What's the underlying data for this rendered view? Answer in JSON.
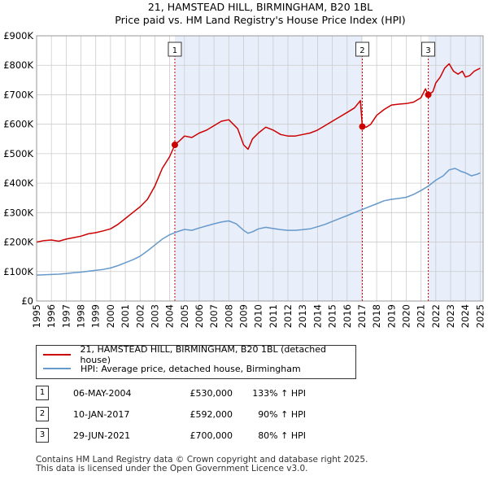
{
  "title": "21, HAMSTEAD HILL, BIRMINGHAM, B20 1BL",
  "subtitle": "Price paid vs. HM Land Registry's House Price Index (HPI)",
  "colors": {
    "property": "#cc0000",
    "hpi": "#6699cc",
    "band": "#e8eefa",
    "grid": "#cccccc",
    "marker": "#cc0000"
  },
  "chart_data": {
    "type": "line",
    "title": "21, HAMSTEAD HILL, BIRMINGHAM, B20 1BL",
    "xlabel": "",
    "ylabel": "",
    "xlim": [
      1995,
      2025.2
    ],
    "ylim": [
      0,
      900000
    ],
    "y_ticks": [
      0,
      100000,
      200000,
      300000,
      400000,
      500000,
      600000,
      700000,
      800000,
      900000
    ],
    "y_tick_labels": [
      "£0",
      "£100K",
      "£200K",
      "£300K",
      "£400K",
      "£500K",
      "£600K",
      "£700K",
      "£800K",
      "£900K"
    ],
    "x_ticks": [
      1995,
      1996,
      1997,
      1998,
      1999,
      2000,
      2001,
      2002,
      2003,
      2004,
      2005,
      2006,
      2007,
      2008,
      2009,
      2010,
      2011,
      2012,
      2013,
      2014,
      2015,
      2016,
      2017,
      2018,
      2019,
      2020,
      2021,
      2022,
      2023,
      2024,
      2025
    ],
    "x_tick_labels": [
      "1995",
      "1996",
      "1997",
      "1998",
      "1999",
      "2000",
      "2001",
      "2002",
      "2003",
      "2004",
      "2005",
      "2006",
      "2007",
      "2008",
      "2009",
      "2010",
      "2011",
      "2012",
      "2013",
      "2014",
      "2015",
      "2016",
      "2017",
      "2018",
      "2019",
      "2020",
      "2021",
      "2022",
      "2023",
      "2024",
      "2025"
    ],
    "grid": true,
    "series": [
      {
        "name": "21, HAMSTEAD HILL, BIRMINGHAM, B20 1BL (detached house)",
        "color": "#cc0000",
        "x": [
          1995.0,
          1995.5,
          1996.0,
          1996.5,
          1997.0,
          1997.5,
          1998.0,
          1998.5,
          1999.0,
          1999.5,
          2000.0,
          2000.5,
          2001.0,
          2001.5,
          2002.0,
          2002.5,
          2003.0,
          2003.5,
          2004.0,
          2004.35,
          2004.7,
          2005.0,
          2005.5,
          2006.0,
          2006.5,
          2007.0,
          2007.5,
          2008.0,
          2008.3,
          2008.6,
          2009.0,
          2009.3,
          2009.6,
          2010.0,
          2010.5,
          2011.0,
          2011.5,
          2012.0,
          2012.5,
          2013.0,
          2013.5,
          2014.0,
          2014.5,
          2015.0,
          2015.5,
          2016.0,
          2016.5,
          2016.9,
          2017.03,
          2017.3,
          2017.6,
          2018.0,
          2018.5,
          2019.0,
          2019.5,
          2020.0,
          2020.5,
          2021.0,
          2021.3,
          2021.49,
          2021.8,
          2022.0,
          2022.3,
          2022.6,
          2022.9,
          2023.2,
          2023.5,
          2023.8,
          2024.0,
          2024.3,
          2024.6,
          2025.0
        ],
        "values": [
          200000,
          205000,
          207000,
          203000,
          210000,
          215000,
          220000,
          228000,
          232000,
          238000,
          245000,
          260000,
          280000,
          300000,
          320000,
          345000,
          390000,
          450000,
          490000,
          530000,
          545000,
          560000,
          555000,
          570000,
          580000,
          595000,
          610000,
          615000,
          600000,
          585000,
          530000,
          515000,
          550000,
          570000,
          590000,
          580000,
          565000,
          560000,
          560000,
          565000,
          570000,
          580000,
          595000,
          610000,
          625000,
          640000,
          655000,
          680000,
          592000,
          590000,
          600000,
          630000,
          650000,
          665000,
          668000,
          670000,
          675000,
          690000,
          720000,
          700000,
          710000,
          740000,
          760000,
          790000,
          805000,
          780000,
          770000,
          780000,
          760000,
          765000,
          780000,
          790000
        ]
      },
      {
        "name": "HPI: Average price, detached house, Birmingham",
        "color": "#6699cc",
        "x": [
          1995.0,
          1995.5,
          1996.0,
          1996.5,
          1997.0,
          1997.5,
          1998.0,
          1998.5,
          1999.0,
          1999.5,
          2000.0,
          2000.5,
          2001.0,
          2001.5,
          2002.0,
          2002.5,
          2003.0,
          2003.5,
          2004.0,
          2004.5,
          2005.0,
          2005.5,
          2006.0,
          2006.5,
          2007.0,
          2007.5,
          2008.0,
          2008.5,
          2009.0,
          2009.3,
          2009.6,
          2010.0,
          2010.5,
          2011.0,
          2011.5,
          2012.0,
          2012.5,
          2013.0,
          2013.5,
          2014.0,
          2014.5,
          2015.0,
          2015.5,
          2016.0,
          2016.5,
          2017.0,
          2017.5,
          2018.0,
          2018.5,
          2019.0,
          2019.5,
          2020.0,
          2020.5,
          2021.0,
          2021.5,
          2022.0,
          2022.5,
          2022.9,
          2023.3,
          2023.7,
          2024.0,
          2024.4,
          2024.8,
          2025.0
        ],
        "values": [
          88000,
          89000,
          90000,
          91000,
          93000,
          96000,
          98000,
          101000,
          104000,
          107000,
          112000,
          120000,
          130000,
          140000,
          152000,
          170000,
          190000,
          210000,
          225000,
          235000,
          243000,
          240000,
          248000,
          255000,
          262000,
          268000,
          272000,
          262000,
          240000,
          230000,
          235000,
          245000,
          250000,
          246000,
          242000,
          240000,
          240000,
          242000,
          245000,
          252000,
          260000,
          270000,
          280000,
          290000,
          300000,
          310000,
          320000,
          330000,
          340000,
          345000,
          348000,
          352000,
          362000,
          375000,
          390000,
          410000,
          425000,
          445000,
          450000,
          440000,
          435000,
          425000,
          430000,
          435000
        ]
      }
    ],
    "annotations": [
      {
        "id": "1",
        "x": 2004.35,
        "y": 530000
      },
      {
        "id": "2",
        "x": 2017.03,
        "y": 592000
      },
      {
        "id": "3",
        "x": 2021.49,
        "y": 700000
      }
    ],
    "shaded_bands": [
      [
        2004.35,
        2017.03
      ],
      [
        2021.49,
        2025.2
      ]
    ]
  },
  "legend": {
    "property_label": "21, HAMSTEAD HILL, BIRMINGHAM, B20 1BL (detached house)",
    "hpi_label": "HPI: Average price, detached house, Birmingham"
  },
  "sales": [
    {
      "n": "1",
      "date": "06-MAY-2004",
      "price": "£530,000",
      "hpi": "133% ↑ HPI"
    },
    {
      "n": "2",
      "date": "10-JAN-2017",
      "price": "£592,000",
      "hpi": "90% ↑ HPI"
    },
    {
      "n": "3",
      "date": "29-JUN-2021",
      "price": "£700,000",
      "hpi": "80% ↑ HPI"
    }
  ],
  "footer": {
    "line1": "Contains HM Land Registry data © Crown copyright and database right 2025.",
    "line2": "This data is licensed under the Open Government Licence v3.0."
  }
}
